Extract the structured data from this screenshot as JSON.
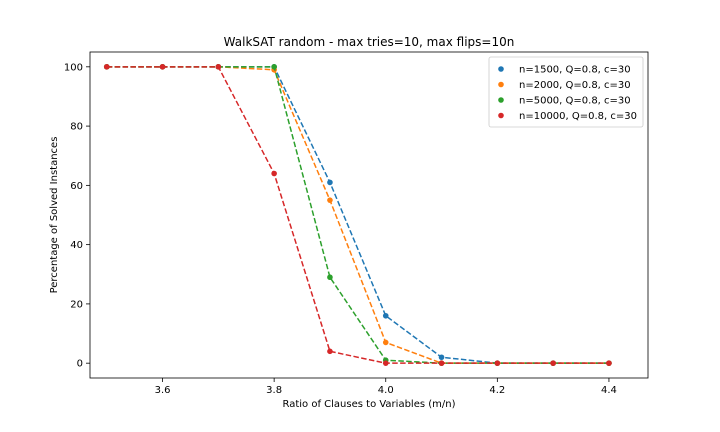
{
  "chart_data": {
    "type": "line",
    "title": "WalkSAT random - max tries=10, max flips=10n",
    "xlabel": "Ratio of Clauses to Variables (m/n)",
    "ylabel": "Percentage of Solved Instances",
    "xlim": [
      3.47,
      4.47
    ],
    "ylim": [
      -5,
      105
    ],
    "xticks": [
      3.6,
      3.8,
      4.0,
      4.2,
      4.4
    ],
    "xtick_labels": [
      "3.6",
      "3.8",
      "4.0",
      "4.2",
      "4.4"
    ],
    "yticks": [
      0,
      20,
      40,
      60,
      80,
      100
    ],
    "ytick_labels": [
      "0",
      "20",
      "40",
      "60",
      "80",
      "100"
    ],
    "grid": false,
    "legend_position": "top-right",
    "x": [
      3.5,
      3.6,
      3.7,
      3.8,
      3.9,
      4.0,
      4.1,
      4.2,
      4.3,
      4.4
    ],
    "series": [
      {
        "name": "n=1500, Q=0.8, c=30",
        "color": "#1f77b4",
        "values": [
          100,
          100,
          100,
          100,
          61,
          16,
          2,
          0,
          0,
          0
        ]
      },
      {
        "name": "n=2000, Q=0.8, c=30",
        "color": "#ff7f0e",
        "values": [
          100,
          100,
          100,
          99,
          55,
          7,
          0,
          0,
          0,
          0
        ]
      },
      {
        "name": "n=5000, Q=0.8, c=30",
        "color": "#2ca02c",
        "values": [
          100,
          100,
          100,
          100,
          29,
          1,
          0,
          0,
          0,
          0
        ]
      },
      {
        "name": "n=10000, Q=0.8, c=30",
        "color": "#d62728",
        "values": [
          100,
          100,
          100,
          64,
          4,
          0,
          0,
          0,
          0,
          0
        ]
      }
    ]
  }
}
